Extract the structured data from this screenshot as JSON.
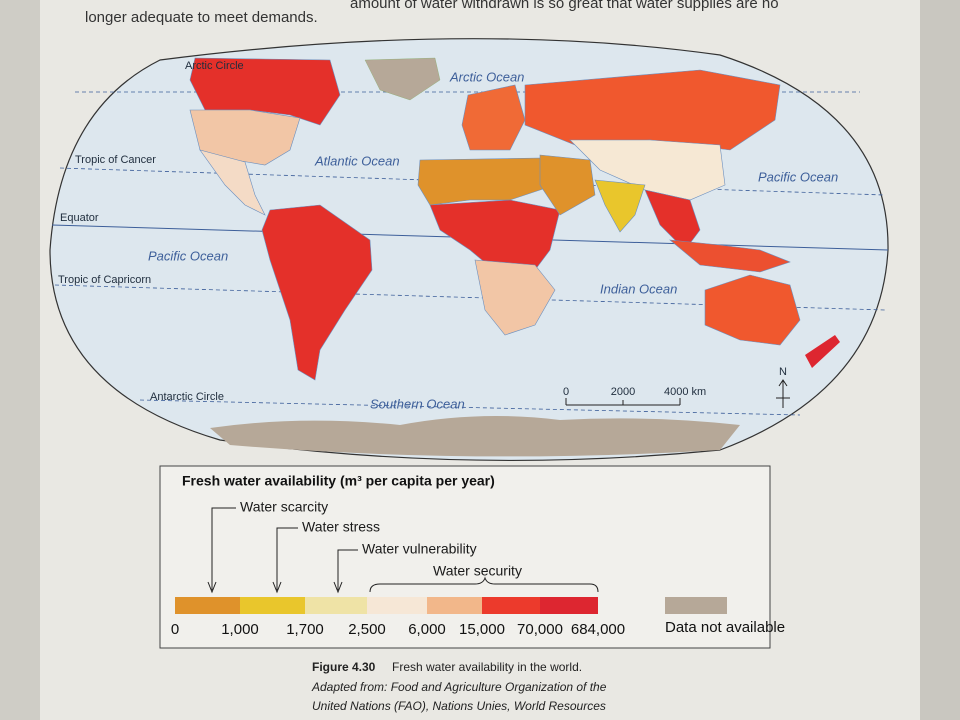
{
  "page_text": {
    "line1": "amount of water withdrawn is so great that water supplies are no",
    "line2": "longer adequate to meet demands."
  },
  "map": {
    "lines": {
      "arctic_circle": "Arctic Circle",
      "tropic_of_cancer": "Tropic of Cancer",
      "equator": "Equator",
      "tropic_of_capricorn": "Tropic of Capricorn",
      "antarctic_circle": "Antarctic Circle"
    },
    "oceans": {
      "arctic": "Arctic Ocean",
      "atlantic": "Atlantic Ocean",
      "pacific_west": "Pacific Ocean",
      "pacific_east": "Pacific Ocean",
      "indian": "Indian Ocean",
      "southern": "Southern Ocean"
    },
    "scale": [
      "0",
      "2000",
      "4000 km"
    ],
    "north": "N"
  },
  "legend": {
    "title": "Fresh water availability (m³ per capita per year)",
    "categories": [
      "Water scarcity",
      "Water stress",
      "Water vulnerability",
      "Water security"
    ],
    "swatch_colors": [
      "#df922b",
      "#e9c62c",
      "#efe3a6",
      "#f6e7d6",
      "#f2b78a",
      "#ec3a2c",
      "#dd2630"
    ],
    "breaks": [
      "0",
      "1,000",
      "1,700",
      "2,500",
      "6,000",
      "15,000",
      "70,000",
      "684,000"
    ],
    "no_data": {
      "label": "Data not available",
      "color": "#b6a898"
    }
  },
  "caption": {
    "figure": "Figure 4.30",
    "title": "Fresh water availability in the world.",
    "source_line1": "Adapted from: Food and Agriculture Organization of the",
    "source_line2": "United Nations (FAO), Nations Unies, World Resources"
  }
}
